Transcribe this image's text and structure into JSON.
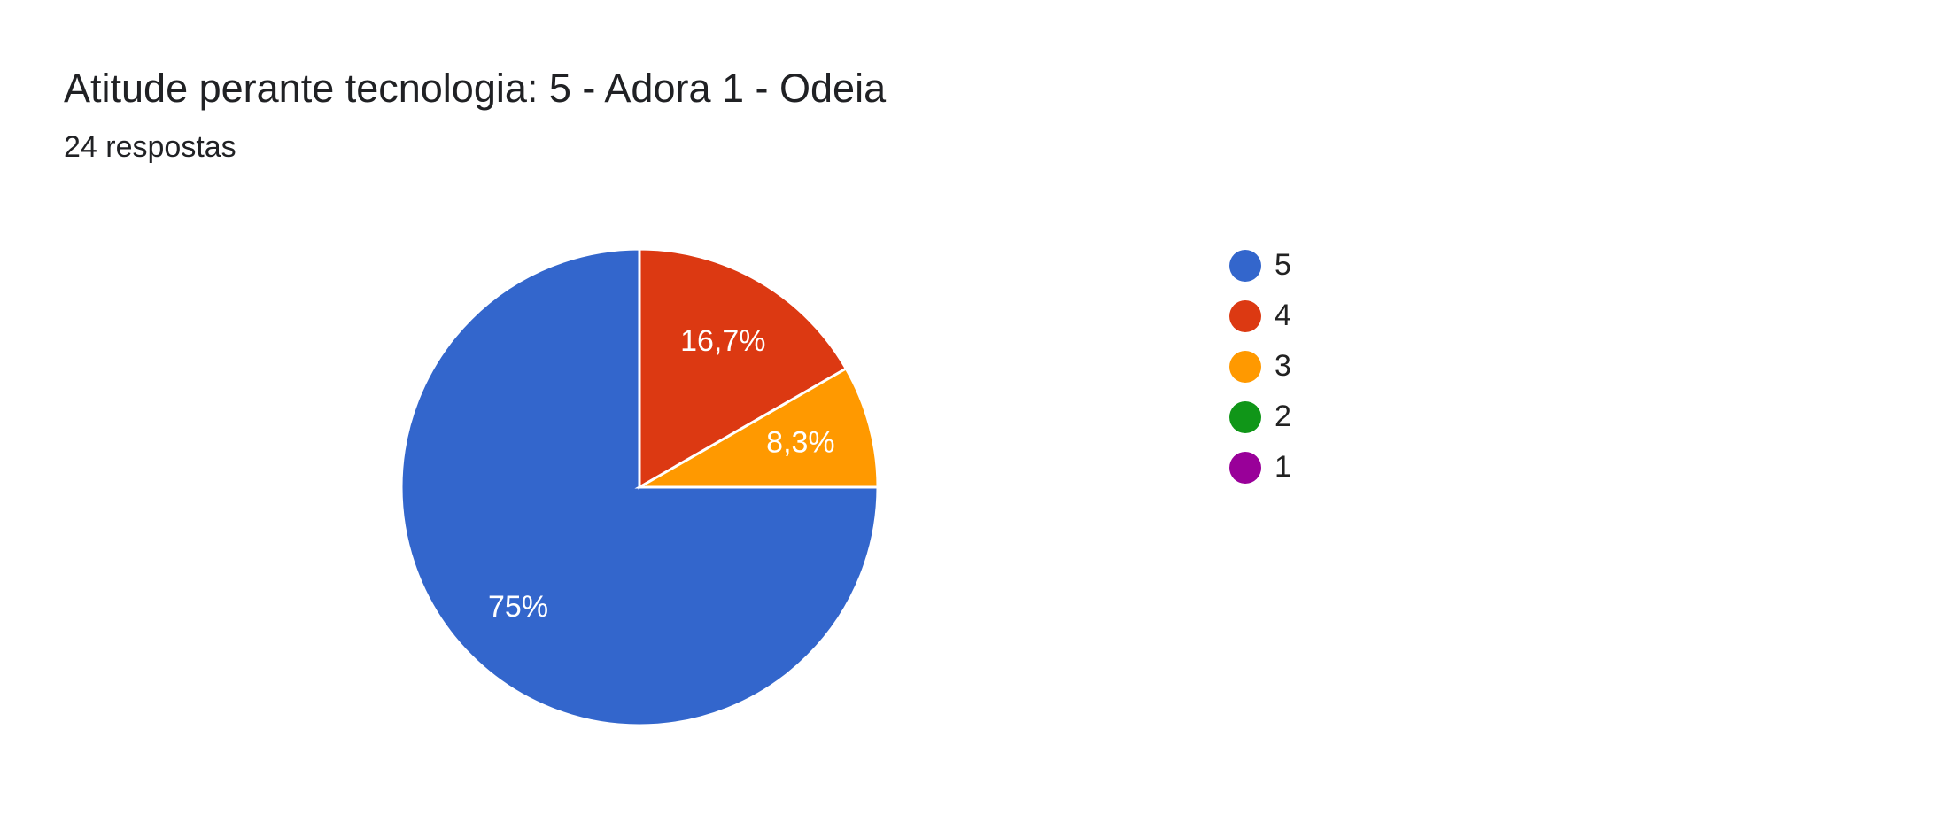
{
  "chart_data": {
    "type": "pie",
    "title": "Atitude perante tecnologia: 5 - Adora 1 - Odeia",
    "subtitle": "24 respostas",
    "categories": [
      "5",
      "4",
      "3",
      "2",
      "1"
    ],
    "values": [
      75,
      16.7,
      8.3,
      0,
      0
    ],
    "value_labels": [
      "75%",
      "16,7%",
      "8,3%",
      null,
      null
    ],
    "colors": [
      "#3366cc",
      "#dc3912",
      "#ff9900",
      "#109618",
      "#990099"
    ],
    "legend": "right"
  }
}
